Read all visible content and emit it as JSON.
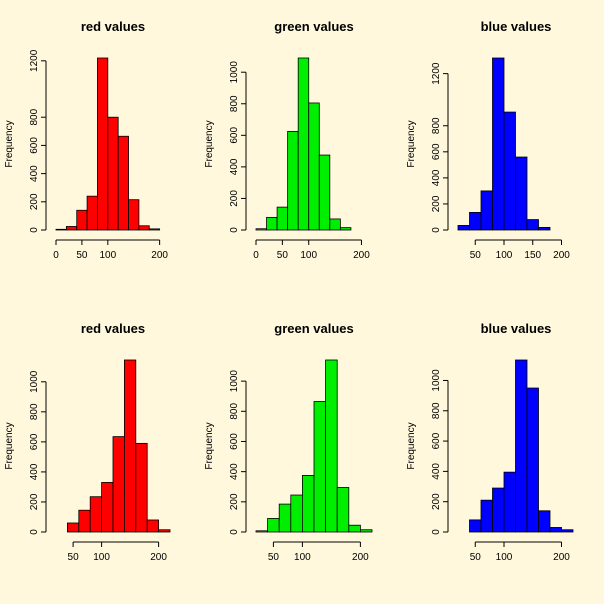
{
  "chart_data": [
    {
      "type": "bar",
      "title": "red values",
      "ylabel": "Frequency",
      "color": "#ff0000",
      "bin_edges": [
        0,
        20,
        40,
        60,
        80,
        100,
        120,
        140,
        160,
        180,
        200,
        220
      ],
      "values": [
        5,
        25,
        140,
        240,
        1220,
        800,
        665,
        215,
        30,
        8,
        0
      ],
      "xticks": [
        0,
        50,
        100,
        200
      ],
      "yticks": [
        0,
        200,
        400,
        600,
        800,
        1200
      ],
      "xlim": [
        0,
        220
      ],
      "ylim": [
        0,
        1220
      ]
    },
    {
      "type": "bar",
      "title": "green values",
      "ylabel": "Frequency",
      "color": "#00ee00",
      "bin_edges": [
        0,
        20,
        40,
        60,
        80,
        100,
        120,
        140,
        160,
        180,
        200,
        220
      ],
      "values": [
        8,
        80,
        145,
        625,
        1090,
        805,
        475,
        70,
        15,
        0,
        0
      ],
      "xticks": [
        0,
        50,
        100,
        200
      ],
      "yticks": [
        0,
        200,
        400,
        600,
        800,
        1000
      ],
      "xlim": [
        0,
        220
      ],
      "ylim": [
        0,
        1090
      ]
    },
    {
      "type": "bar",
      "title": "blue values",
      "ylabel": "Frequency",
      "color": "#0000ff",
      "bin_edges": [
        20,
        40,
        60,
        80,
        100,
        120,
        140,
        160,
        180,
        200,
        220
      ],
      "values": [
        35,
        135,
        300,
        1320,
        905,
        560,
        80,
        20,
        0,
        0
      ],
      "xticks": [
        50,
        100,
        150,
        200
      ],
      "yticks": [
        0,
        200,
        400,
        600,
        800,
        1200
      ],
      "xlim": [
        20,
        220
      ],
      "ylim": [
        0,
        1320
      ]
    },
    {
      "type": "bar",
      "title": "red values",
      "ylabel": "Frequency",
      "color": "#ff0000",
      "bin_edges": [
        40,
        60,
        80,
        100,
        120,
        140,
        160,
        180,
        200,
        220
      ],
      "values": [
        60,
        145,
        235,
        330,
        635,
        1145,
        590,
        80,
        15
      ],
      "xticks": [
        50,
        100,
        200
      ],
      "yticks": [
        0,
        200,
        400,
        600,
        800,
        1000
      ],
      "xlim": [
        20,
        220
      ],
      "ylim": [
        0,
        1145
      ]
    },
    {
      "type": "bar",
      "title": "green values",
      "ylabel": "Frequency",
      "color": "#00ee00",
      "bin_edges": [
        20,
        40,
        60,
        80,
        100,
        120,
        140,
        160,
        180,
        200,
        220
      ],
      "values": [
        8,
        90,
        185,
        245,
        375,
        865,
        1140,
        295,
        45,
        15
      ],
      "xticks": [
        50,
        100,
        200
      ],
      "yticks": [
        0,
        200,
        400,
        600,
        800,
        1000
      ],
      "xlim": [
        20,
        220
      ],
      "ylim": [
        0,
        1140
      ]
    },
    {
      "type": "bar",
      "title": "blue values",
      "ylabel": "Frequency",
      "color": "#0000ff",
      "bin_edges": [
        40,
        60,
        80,
        100,
        120,
        140,
        160,
        180,
        200,
        220
      ],
      "values": [
        80,
        210,
        290,
        395,
        1135,
        950,
        140,
        30,
        15
      ],
      "xticks": [
        50,
        100,
        200
      ],
      "yticks": [
        0,
        200,
        400,
        600,
        800,
        1000
      ],
      "xlim": [
        20,
        220
      ],
      "ylim": [
        0,
        1135
      ]
    }
  ]
}
